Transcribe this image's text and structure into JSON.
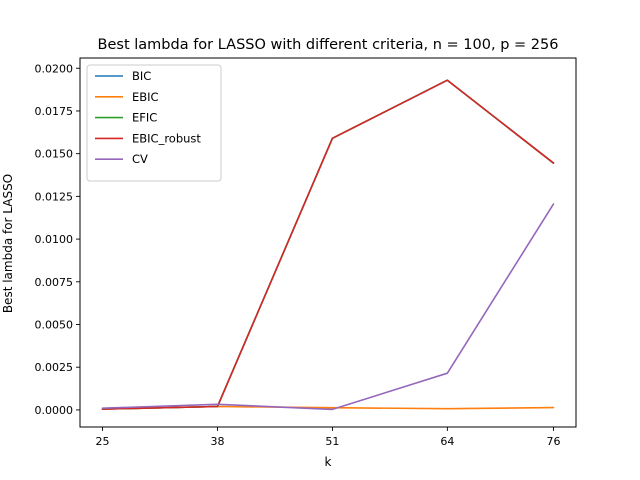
{
  "chart_data": {
    "type": "line",
    "title": "Best lambda for LASSO with different criteria, n = 100, p = 256",
    "xlabel": "k",
    "ylabel": "Best lambda for LASSO",
    "x": [
      25,
      38,
      51,
      64,
      76
    ],
    "x_tick_labels": [
      "25",
      "38",
      "51",
      "64",
      "76"
    ],
    "ylim": [
      -0.001,
      0.0206
    ],
    "y_ticks": [
      0.0,
      0.0025,
      0.005,
      0.0075,
      0.01,
      0.0125,
      0.015,
      0.0175,
      0.02
    ],
    "y_tick_labels": [
      "0.0000",
      "0.0025",
      "0.0050",
      "0.0075",
      "0.0100",
      "0.0125",
      "0.0150",
      "0.0175",
      "0.0200"
    ],
    "grid": false,
    "legend_position": "top-left",
    "series": [
      {
        "name": "BIC",
        "color": "#1f77b4",
        "values": [
          5e-05,
          0.0002,
          0.0159,
          0.0193,
          0.01445
        ]
      },
      {
        "name": "EBIC",
        "color": "#ff7f0e",
        "values": [
          5e-05,
          0.0002,
          0.00013,
          7e-05,
          0.00014
        ]
      },
      {
        "name": "EFIC",
        "color": "#2ca02c",
        "values": [
          5e-05,
          0.0002,
          0.0159,
          0.0193,
          0.01445
        ]
      },
      {
        "name": "EBIC_robust",
        "color": "#d62728",
        "values": [
          5e-05,
          0.0002,
          0.0159,
          0.0193,
          0.01445
        ]
      },
      {
        "name": "CV",
        "color": "#9467bd",
        "values": [
          0.0001,
          0.00033,
          3e-05,
          0.00215,
          0.01205
        ]
      }
    ]
  }
}
